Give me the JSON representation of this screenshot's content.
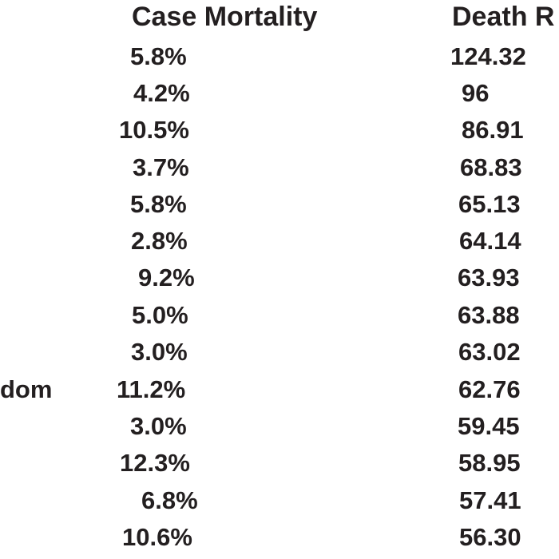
{
  "table": {
    "headers": {
      "case_mortality": "Case Mortality",
      "death_rate": "Death R"
    },
    "rows": [
      {
        "country": "",
        "case_mortality": "5.8%",
        "death_rate": "124.32"
      },
      {
        "country": "",
        "case_mortality": "4.2%",
        "death_rate": "96"
      },
      {
        "country": "",
        "case_mortality": "10.5%",
        "death_rate": "86.91"
      },
      {
        "country": "",
        "case_mortality": "3.7%",
        "death_rate": "68.83"
      },
      {
        "country": "",
        "case_mortality": "5.8%",
        "death_rate": "65.13"
      },
      {
        "country": "",
        "case_mortality": "2.8%",
        "death_rate": "64.14"
      },
      {
        "country": "",
        "case_mortality": "9.2%",
        "death_rate": "63.93"
      },
      {
        "country": "",
        "case_mortality": "5.0%",
        "death_rate": "63.88"
      },
      {
        "country": "",
        "case_mortality": "3.0%",
        "death_rate": "63.02"
      },
      {
        "country": "dom",
        "case_mortality": "11.2%",
        "death_rate": "62.76"
      },
      {
        "country": "",
        "case_mortality": "3.0%",
        "death_rate": "59.45"
      },
      {
        "country": "",
        "case_mortality": "12.3%",
        "death_rate": "58.95"
      },
      {
        "country": "",
        "case_mortality": "6.8%",
        "death_rate": "57.41"
      },
      {
        "country": "",
        "case_mortality": "10.6%",
        "death_rate": "56.30"
      }
    ]
  }
}
